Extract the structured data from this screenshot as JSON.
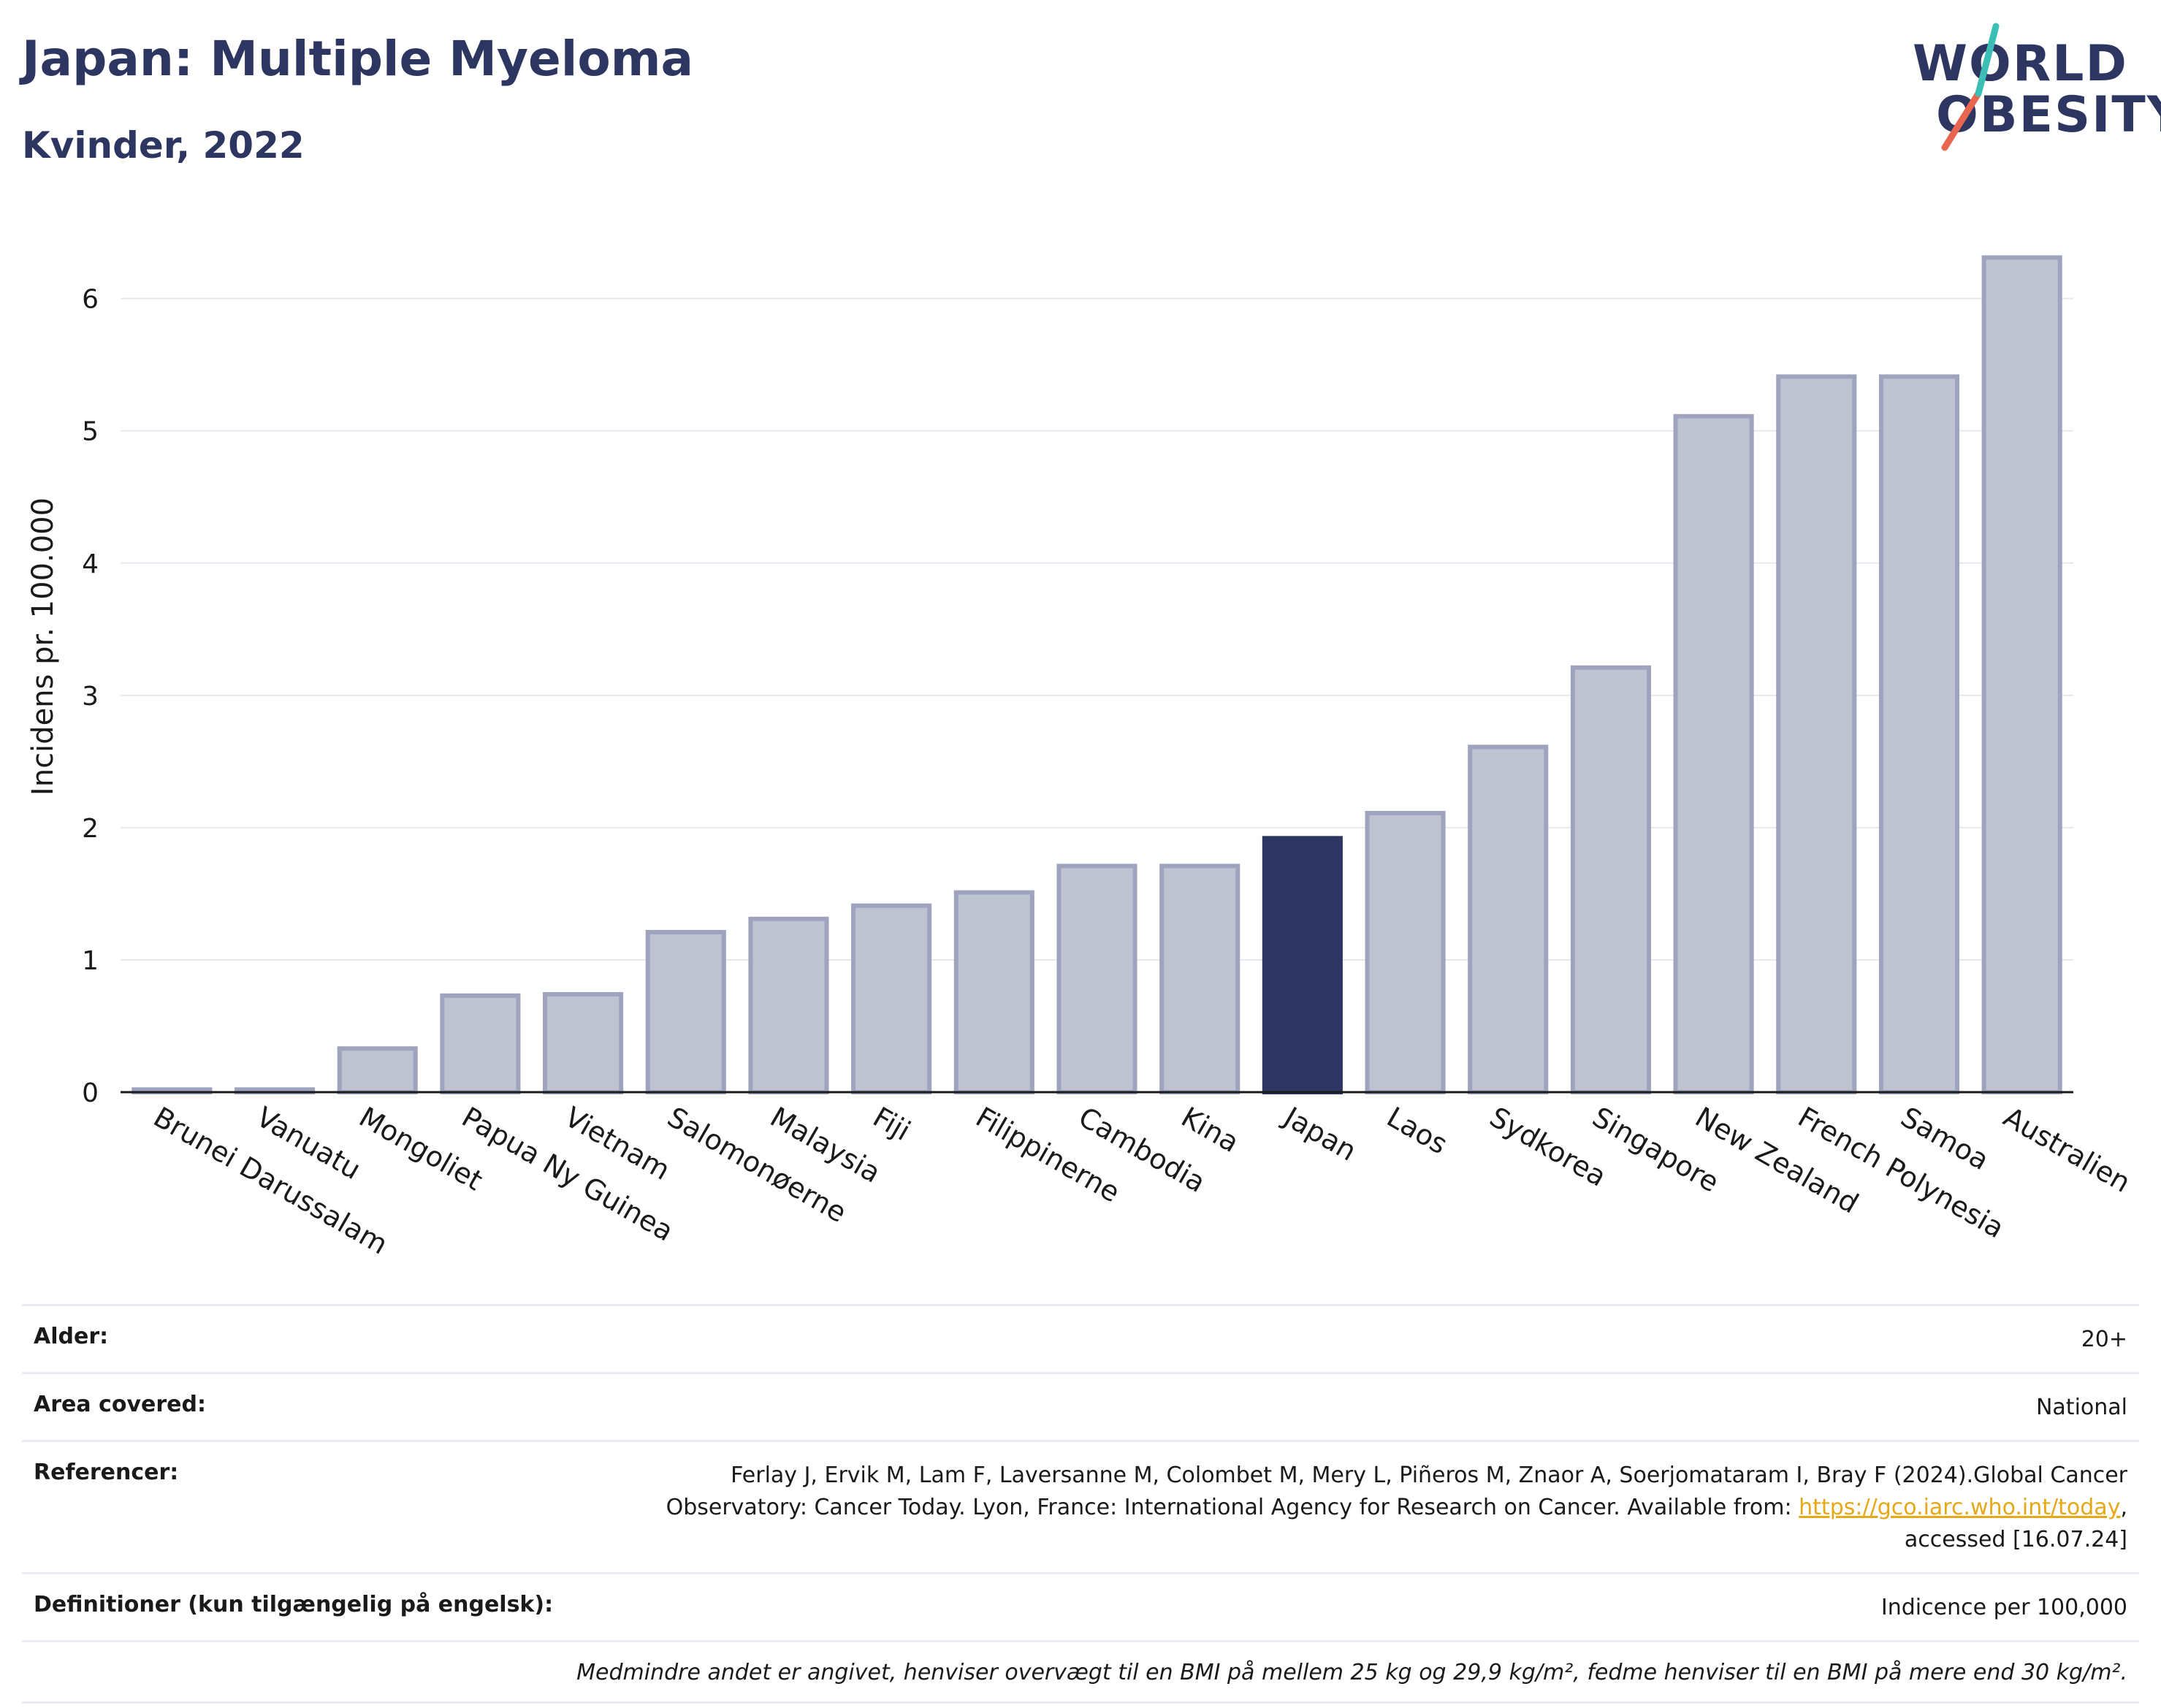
{
  "header": {
    "title": "Japan: Multiple Myeloma",
    "subtitle": "Kvinder, 2022"
  },
  "logo": {
    "line1": "WORLD",
    "line2": "OBESITY",
    "accent_teal": "#3bbfb5",
    "accent_red": "#e8654f"
  },
  "colors": {
    "bar": "#bfc3d1",
    "bar_border": "#9ea4bd",
    "highlight": "#2d3561",
    "grid": "#e6e8ef",
    "axis": "#1a1a1a"
  },
  "chart_data": {
    "type": "bar",
    "ylabel": "Incidens pr. 100.000",
    "ylim": [
      0,
      6.6
    ],
    "yticks": [
      0,
      1,
      2,
      3,
      4,
      5,
      6
    ],
    "grid": true,
    "highlight": "Japan",
    "categories": [
      "Brunei Darussalam",
      "Vanuatu",
      "Mongoliet",
      "Papua Ny Guinea",
      "Vietnam",
      "Salomonøerne",
      "Malaysia",
      "Fiji",
      "Filippinerne",
      "Cambodia",
      "Kina",
      "Japan",
      "Laos",
      "Sydkorea",
      "Singapore",
      "New Zealand",
      "French Polynesia",
      "Samoa",
      "Australien"
    ],
    "values": [
      0.02,
      0.02,
      0.33,
      0.73,
      0.74,
      1.21,
      1.31,
      1.41,
      1.51,
      1.71,
      1.71,
      1.92,
      2.11,
      2.61,
      3.21,
      5.11,
      5.41,
      5.41,
      6.31
    ]
  },
  "info": {
    "age_label": "Alder:",
    "age_value": "20+",
    "area_label": "Area covered:",
    "area_value": "National",
    "ref_label": "Referencer:",
    "ref_line1": "Ferlay J, Ervik M, Lam F, Laversanne M, Colombet M, Mery L, Piñeros M, Znaor A, Soerjomataram I, Bray F (2024).Global Cancer",
    "ref_line2_pre": "Observatory: Cancer Today. Lyon, France: International Agency for Research on Cancer. Available from: ",
    "ref_link": "https://gco.iarc.who.int/today",
    "ref_line2_post": ",",
    "ref_line3": "accessed [16.07.24]",
    "def_label": "Definitioner (kun tilgængelig på engelsk):",
    "def_value": "Indicence per 100,000",
    "note": "Medmindre andet er angivet, henviser overvægt til en BMI på mellem 25 kg og 29,9 kg/m², fedme henviser til en BMI på mere end 30 kg/m²."
  }
}
